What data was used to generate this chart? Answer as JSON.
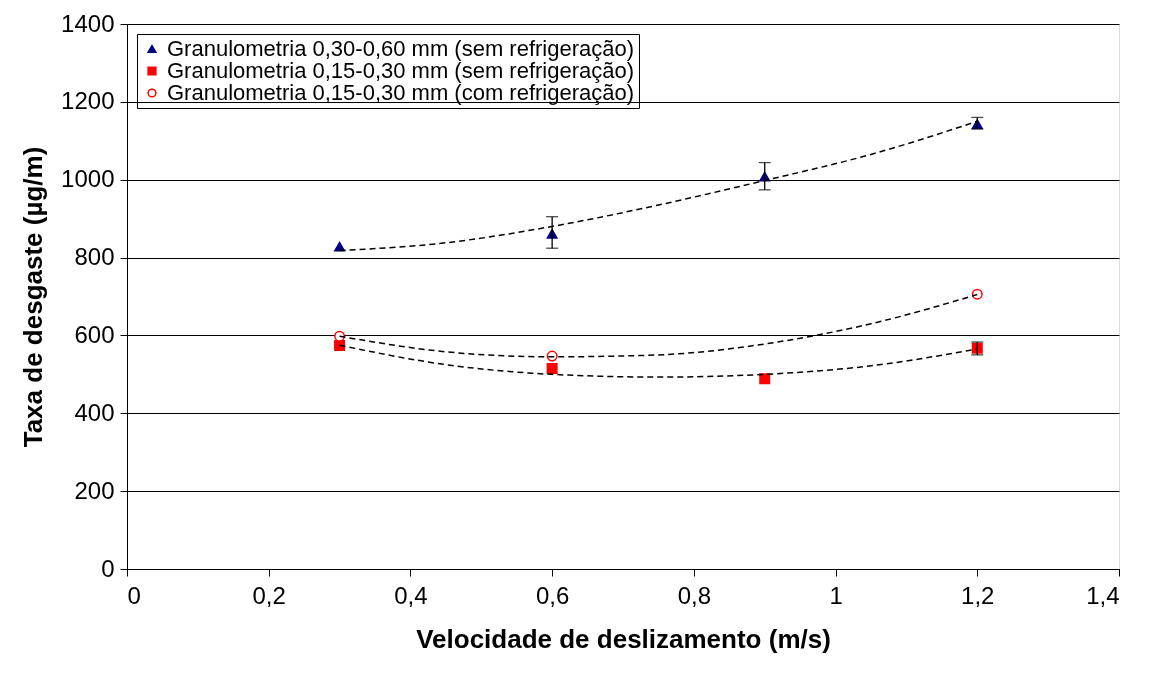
{
  "chart_data": {
    "type": "scatter",
    "xlabel": "Velocidade de deslizamento (m/s)",
    "ylabel": "Taxa de desgaste (µg/m)",
    "xlim": [
      0,
      1.4
    ],
    "xticks": [
      0,
      {
        "value": 0.2,
        "label": "0,2"
      },
      {
        "value": 0.4,
        "label": "0,4"
      },
      {
        "value": 0.6,
        "label": "0,6"
      },
      {
        "value": 0.8,
        "label": "0,8"
      },
      1,
      {
        "value": 1.2,
        "label": "1,2"
      },
      {
        "value": 1.4,
        "label": "1,4"
      }
    ],
    "ylim": [
      0,
      1400
    ],
    "yticks": [
      0,
      200,
      400,
      600,
      800,
      1000,
      1200,
      1400
    ],
    "grid": "y",
    "legend": "top left",
    "series": [
      {
        "name": "Granulometria 0,30-0,60 mm (sem refrigeração)",
        "color": "#000080",
        "marker": "triangle",
        "x": [
          0.3,
          0.6,
          0.9,
          1.2
        ],
        "values": [
          828,
          861,
          1008,
          1143
        ],
        "errors": [
          null,
          [
            824,
            905
          ],
          [
            974,
            1044
          ],
          [
            1130,
            1160
          ]
        ]
      },
      {
        "name": "Granulometria 0,15-0,30 mm (sem refrigeração)",
        "color": "#ff0000",
        "marker": "square",
        "x": [
          0.3,
          0.6,
          0.9,
          1.2
        ],
        "values": [
          574,
          515,
          489,
          567
        ],
        "errors": [
          null,
          null,
          null,
          [
            550,
            583
          ]
        ]
      },
      {
        "name": "Granulometria 0,15-0,30 mm (com refrigeração)",
        "color": "#ff0000",
        "marker": "circle",
        "x": [
          0.3,
          0.6,
          0.9,
          1.2
        ],
        "values": [
          598,
          547,
          null,
          706
        ]
      },
      {
        "type": "line",
        "color": "#000000",
        "line_style": "dashed",
        "x": [
          0.3,
          0.45,
          0.6,
          0.75,
          0.9,
          1.05,
          1.2
        ],
        "values": [
          818,
          838,
          880,
          935,
          998,
          1065,
          1150
        ]
      },
      {
        "type": "line",
        "color": "#000000",
        "line_style": "dashed",
        "x": [
          0.3,
          0.45,
          0.6,
          0.75,
          0.9,
          1.05,
          1.2
        ],
        "values": [
          575,
          525,
          500,
          493,
          500,
          522,
          565
        ]
      },
      {
        "type": "line",
        "color": "#000000",
        "line_style": "dashed",
        "x": [
          0.3,
          0.45,
          0.6,
          0.75,
          0.9,
          1.05,
          1.2
        ],
        "values": [
          598,
          558,
          545,
          550,
          578,
          630,
          705
        ]
      }
    ]
  }
}
